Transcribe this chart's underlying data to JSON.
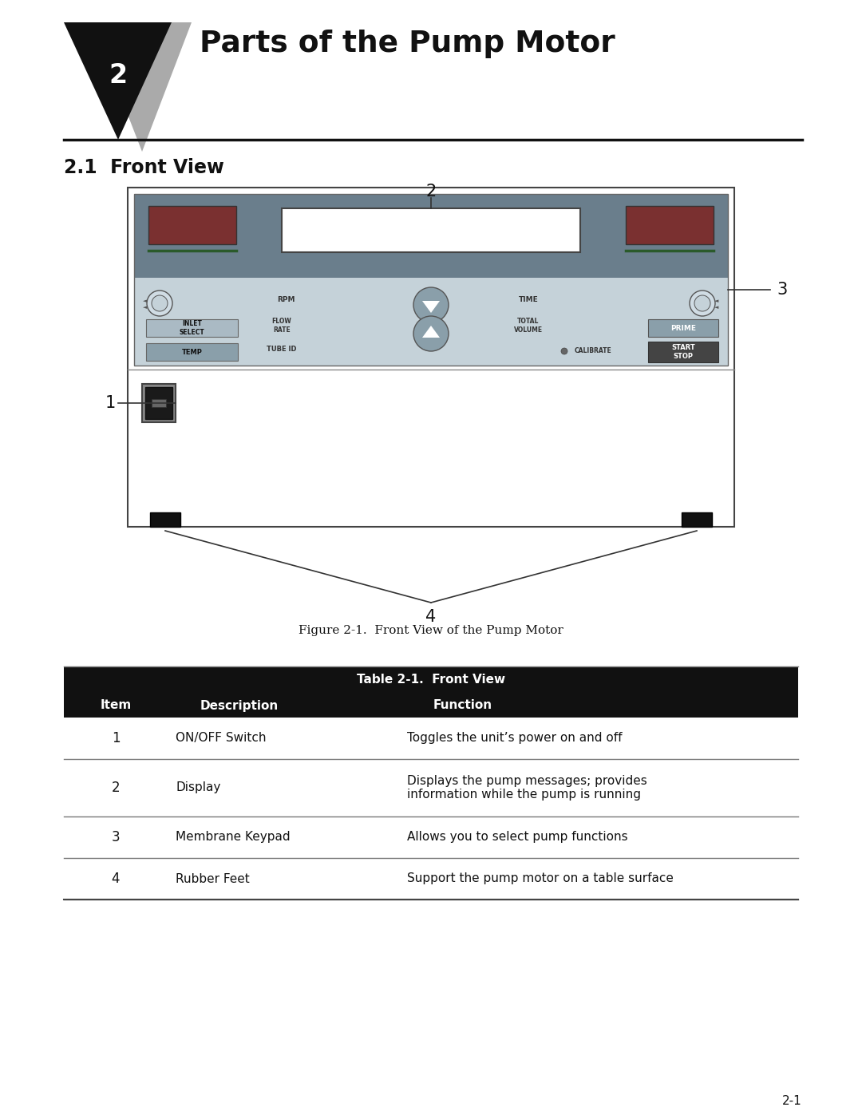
{
  "page_title": "Parts of the Pump Motor",
  "chapter_num": "2",
  "section_title": "2.1  Front View",
  "figure_caption": "Figure 2-1.  Front View of the Pump Motor",
  "table_title": "Table 2-1.  Front View",
  "table_headers": [
    "Item",
    "Description",
    "Function"
  ],
  "table_rows": [
    [
      "1",
      "ON/OFF Switch",
      "Toggles the unit’s power on and off"
    ],
    [
      "2",
      "Display",
      "Displays the pump messages; provides\ninformation while the pump is running"
    ],
    [
      "3",
      "Membrane Keypad",
      "Allows you to select pump functions"
    ],
    [
      "4",
      "Rubber Feet",
      "Support the pump motor on a table surface"
    ]
  ],
  "page_number": "2-1",
  "bg_color": "#ffffff",
  "tri_black": "#111111",
  "tri_gray": "#aaaaaa",
  "title_color": "#111111",
  "rule_color": "#111111",
  "dev_border": "#444444",
  "dev_top_dark": "#6a7e8c",
  "dev_top_light": "#8fa0ab",
  "dev_kp_bg": "#c5d2d9",
  "dev_body_bg": "#ffffff",
  "disp_red": "#7a3030",
  "disp_green_line": "#2a5a2a",
  "disp_white": "#ffffff",
  "btn_gray": "#8a9faa",
  "btn_dark": "#444444",
  "btn_prime": "#8a9faa",
  "tbl_header_bg": "#111111",
  "tbl_header_text": "#ffffff",
  "tbl_border": "#777777",
  "tbl_text": "#111111"
}
